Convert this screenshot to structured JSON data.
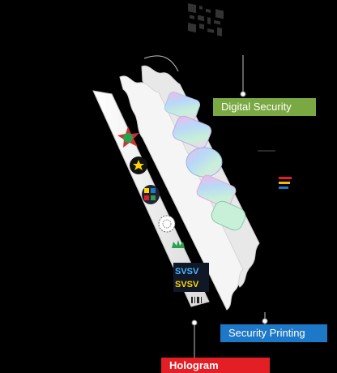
{
  "labels": {
    "digital_security": "Digital Security",
    "security_printing": "Security Printing",
    "hologram": "Hologram"
  },
  "hologram_text": "SVSV",
  "colors": {
    "background": "#000000",
    "digital_security": "#7aa843",
    "security_printing": "#1e78c8",
    "hologram": "#e31e24",
    "strip": "#f2f2f2",
    "leader_line": "#bfbfbf"
  },
  "icons": {
    "qr_code": "qr-code-icon",
    "star_badge": "star-badge-icon",
    "star_circle": "star-circle-icon",
    "pattern_circle": "pattern-circle-icon",
    "crown": "crown-icon"
  }
}
